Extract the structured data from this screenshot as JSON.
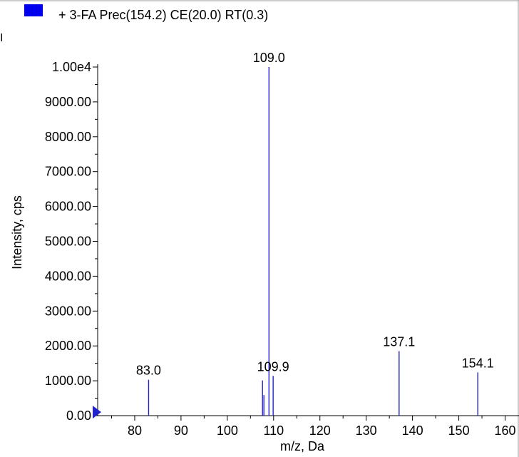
{
  "legend": {
    "label": "+ 3-FA Prec(154.2) CE(20.0) RT(0.3)",
    "color": "#0000ee"
  },
  "fragment_text": "I",
  "chart_data": {
    "type": "bar",
    "title": "",
    "xlabel": "m/z, Da",
    "ylabel": "Intensity, cps",
    "xlim": [
      72,
      163
    ],
    "ylim": [
      0,
      10000
    ],
    "x_ticks": [
      80,
      90,
      100,
      110,
      120,
      130,
      140,
      150,
      160
    ],
    "y_ticks": [
      0,
      1000,
      2000,
      3000,
      4000,
      5000,
      6000,
      7000,
      8000,
      9000,
      10000
    ],
    "y_tick_labels": [
      "0.00",
      "1000.00",
      "2000.00",
      "3000.00",
      "4000.00",
      "5000.00",
      "6000.00",
      "7000.00",
      "8000.00",
      "9000.00",
      "1.00e4"
    ],
    "series_color": "#2222cc",
    "peaks": [
      {
        "mz": 83.0,
        "intensity": 1030
      },
      {
        "mz": 107.6,
        "intensity": 1010
      },
      {
        "mz": 107.9,
        "intensity": 590
      },
      {
        "mz": 109.0,
        "intensity": 10000
      },
      {
        "mz": 109.9,
        "intensity": 1140
      },
      {
        "mz": 137.1,
        "intensity": 1850
      },
      {
        "mz": 154.1,
        "intensity": 1240
      }
    ],
    "peak_labels": [
      {
        "text": "83.0",
        "mz": 83.0,
        "intensity": 1030
      },
      {
        "text": "109.0",
        "mz": 109.0,
        "intensity": 10000
      },
      {
        "text": "109.9",
        "mz": 109.9,
        "intensity": 1140
      },
      {
        "text": "137.1",
        "mz": 137.1,
        "intensity": 1850
      },
      {
        "text": "154.1",
        "mz": 154.1,
        "intensity": 1240
      }
    ]
  }
}
